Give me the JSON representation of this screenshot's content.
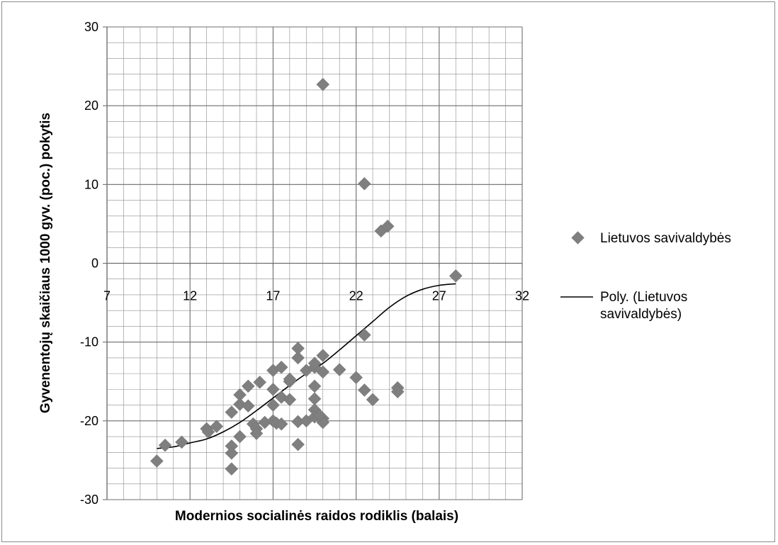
{
  "chart_data": {
    "type": "scatter",
    "xlabel": "Modernios socialinės raidos rodiklis (balais)",
    "ylabel": "Gyvenentojų skaičiaus 1000 gyv. (poc.) pokytis",
    "xlim": [
      7,
      32
    ],
    "ylim": [
      -30,
      30
    ],
    "x_ticks": [
      "7",
      "12",
      "17",
      "22",
      "27",
      "32"
    ],
    "y_ticks": [
      "30",
      "20",
      "10",
      "0",
      "-10",
      "-20",
      "-30"
    ],
    "grid": true,
    "minor_grid": true,
    "legend_position": "right",
    "colors": {
      "points": "#7f7f7f",
      "trendline": "#000000",
      "grid": "#8c8c8c"
    },
    "series": [
      {
        "name": "Lietuvos savivaldybės",
        "marker": "diamond",
        "points": [
          [
            10.0,
            -25.1
          ],
          [
            10.5,
            -23.1
          ],
          [
            11.5,
            -22.7
          ],
          [
            13.0,
            -21.0
          ],
          [
            13.1,
            -21.4
          ],
          [
            13.6,
            -20.7
          ],
          [
            14.5,
            -26.1
          ],
          [
            14.5,
            -23.2
          ],
          [
            14.5,
            -24.1
          ],
          [
            14.5,
            -18.9
          ],
          [
            15.0,
            -22.0
          ],
          [
            15.0,
            -16.7
          ],
          [
            15.0,
            -17.9
          ],
          [
            15.5,
            -15.6
          ],
          [
            15.5,
            -18.1
          ],
          [
            15.8,
            -20.4
          ],
          [
            16.0,
            -21.0
          ],
          [
            16.0,
            -21.6
          ],
          [
            16.2,
            -15.1
          ],
          [
            16.5,
            -20.2
          ],
          [
            17.0,
            -20.0
          ],
          [
            17.0,
            -13.6
          ],
          [
            17.0,
            -16.0
          ],
          [
            17.0,
            -18.0
          ],
          [
            17.2,
            -20.3
          ],
          [
            17.5,
            -17.0
          ],
          [
            17.5,
            -13.2
          ],
          [
            17.5,
            -20.4
          ],
          [
            18.0,
            -17.3
          ],
          [
            18.0,
            -15.0
          ],
          [
            18.0,
            -14.7
          ],
          [
            18.5,
            -12.0
          ],
          [
            18.5,
            -10.8
          ],
          [
            18.5,
            -20.1
          ],
          [
            18.5,
            -23.0
          ],
          [
            19.0,
            -13.6
          ],
          [
            19.0,
            -20.0
          ],
          [
            19.5,
            -13.2
          ],
          [
            19.5,
            -12.7
          ],
          [
            19.5,
            -15.6
          ],
          [
            19.5,
            -17.2
          ],
          [
            19.5,
            -18.6
          ],
          [
            19.5,
            -19.5
          ],
          [
            20.0,
            -11.7
          ],
          [
            20.0,
            -13.8
          ],
          [
            20.0,
            -19.7
          ],
          [
            20.0,
            -20.2
          ],
          [
            19.8,
            -19.3
          ],
          [
            21.0,
            -13.5
          ],
          [
            22.0,
            -14.5
          ],
          [
            22.5,
            -9.1
          ],
          [
            22.5,
            -16.1
          ],
          [
            23.0,
            -17.3
          ],
          [
            24.5,
            -15.8
          ],
          [
            24.5,
            -16.3
          ],
          [
            20.0,
            22.7
          ],
          [
            22.5,
            10.1
          ],
          [
            23.5,
            4.1
          ],
          [
            23.9,
            4.7
          ],
          [
            28.0,
            -1.6
          ]
        ]
      },
      {
        "name": "Poly. (Lietuvos savivaldybės)",
        "type": "line",
        "points": [
          [
            10.0,
            -23.5
          ],
          [
            11.0,
            -23.3
          ],
          [
            12.0,
            -22.8
          ],
          [
            13.0,
            -22.3
          ],
          [
            14.0,
            -21.4
          ],
          [
            15.0,
            -20.2
          ],
          [
            16.0,
            -18.7
          ],
          [
            17.0,
            -17.1
          ],
          [
            18.0,
            -15.5
          ],
          [
            19.0,
            -14.0
          ],
          [
            20.0,
            -12.7
          ],
          [
            21.0,
            -11.0
          ],
          [
            22.0,
            -9.2
          ],
          [
            23.0,
            -7.4
          ],
          [
            24.0,
            -5.6
          ],
          [
            25.0,
            -4.2
          ],
          [
            26.0,
            -3.3
          ],
          [
            27.0,
            -2.8
          ],
          [
            28.0,
            -2.6
          ]
        ]
      }
    ]
  }
}
